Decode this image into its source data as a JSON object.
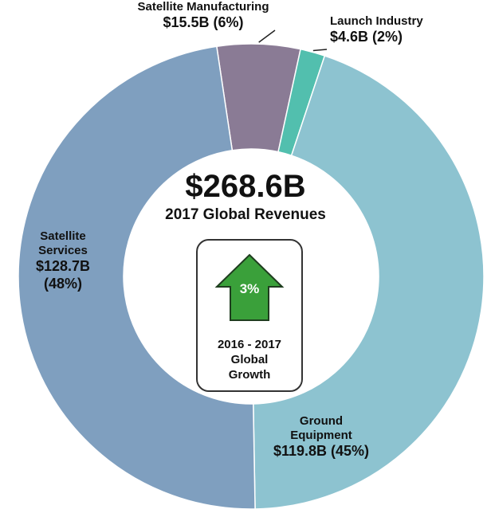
{
  "chart_data": {
    "type": "pie",
    "variant": "donut",
    "slices": [
      {
        "label": "Satellite Manufacturing",
        "value": 15.5,
        "value_text": "$15.5B (6%)",
        "percent": 6,
        "color": "#8a7b95"
      },
      {
        "label": "Launch Industry",
        "value": 4.6,
        "value_text": "$4.6B (2%)",
        "percent": 2,
        "color": "#52bfae"
      },
      {
        "label": "Ground Equipment",
        "value": 119.8,
        "value_text": "$119.8B (45%)",
        "percent": 45,
        "color": "#8dc3d0"
      },
      {
        "label": "Satellite Services",
        "value": 128.7,
        "value_text": "$128.7B (48%)",
        "percent": 48,
        "color": "#7f9fbf"
      }
    ],
    "center": {
      "total": "$268.6B",
      "total_label": "2017 Global Revenues"
    },
    "growth": {
      "value": "3%",
      "label_lines": [
        "2016 - 2017",
        "Global",
        "Growth"
      ],
      "arrow_color": "#3aa03a"
    }
  }
}
